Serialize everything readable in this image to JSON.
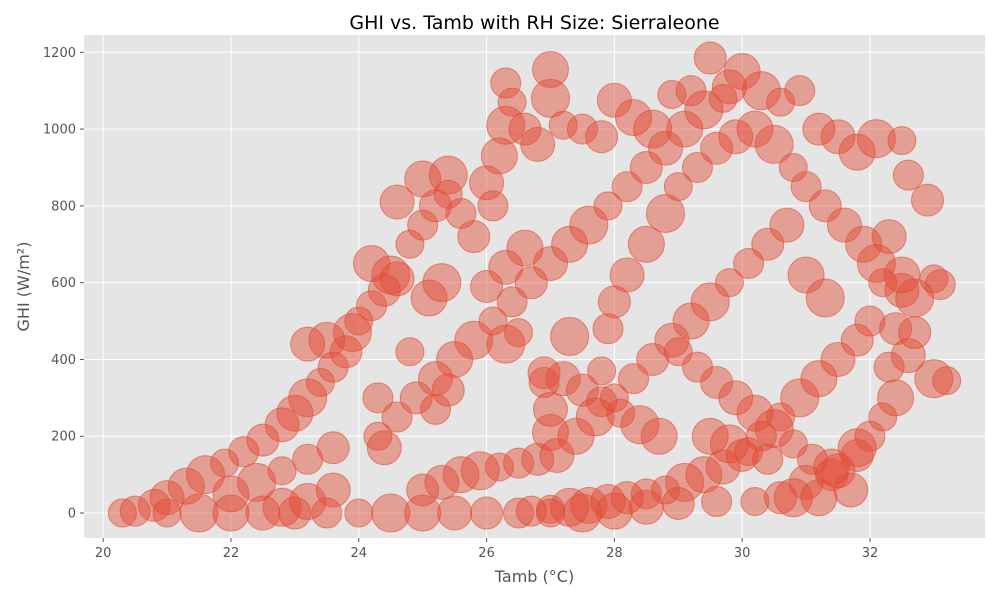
{
  "chart_data": {
    "type": "scatter",
    "title": "GHI vs. Tamb with RH Size: Sierraleone",
    "xlabel": "Tamb (°C)",
    "ylabel": "GHI (W/m²)",
    "xlim": [
      19.7,
      33.8
    ],
    "ylim": [
      -65,
      1245
    ],
    "xticks": [
      20,
      22,
      24,
      26,
      28,
      30,
      32
    ],
    "yticks": [
      0,
      200,
      400,
      600,
      800,
      1000,
      1200
    ],
    "grid": true,
    "legend": "none",
    "marker_color": "#E24A33",
    "marker_alpha": 0.45,
    "size_encoding": "RH",
    "series": [
      {
        "points": [
          [
            20.3,
            0
          ],
          [
            20.5,
            5
          ],
          [
            20.8,
            20
          ],
          [
            21.0,
            40
          ],
          [
            21.3,
            70
          ],
          [
            21.6,
            100
          ],
          [
            21.9,
            130
          ],
          [
            22.2,
            160
          ],
          [
            22.5,
            190
          ],
          [
            22.8,
            230
          ],
          [
            23.0,
            260
          ],
          [
            23.2,
            300
          ],
          [
            23.4,
            340
          ],
          [
            23.6,
            380
          ],
          [
            23.8,
            420
          ],
          [
            23.2,
            440
          ],
          [
            23.5,
            450
          ],
          [
            23.9,
            470
          ],
          [
            24.0,
            500
          ],
          [
            24.2,
            540
          ],
          [
            24.4,
            580
          ],
          [
            24.6,
            610
          ],
          [
            24.2,
            650
          ],
          [
            24.5,
            620
          ],
          [
            24.8,
            700
          ],
          [
            25.0,
            750
          ],
          [
            25.2,
            800
          ],
          [
            24.6,
            810
          ],
          [
            25.0,
            870
          ],
          [
            25.4,
            880
          ],
          [
            25.4,
            830
          ],
          [
            25.6,
            780
          ],
          [
            25.8,
            720
          ],
          [
            26.0,
            860
          ],
          [
            26.2,
            930
          ],
          [
            26.3,
            1010
          ],
          [
            26.4,
            1070
          ],
          [
            26.3,
            1120
          ],
          [
            26.6,
            1000
          ],
          [
            26.8,
            960
          ],
          [
            27.0,
            1155
          ],
          [
            27.0,
            1080
          ],
          [
            27.2,
            1010
          ],
          [
            27.5,
            1000
          ],
          [
            27.8,
            980
          ],
          [
            28.0,
            1075
          ],
          [
            28.3,
            1030
          ],
          [
            28.6,
            1000
          ],
          [
            28.9,
            1090
          ],
          [
            29.2,
            1100
          ],
          [
            29.5,
            1185
          ],
          [
            29.8,
            1110
          ],
          [
            30.0,
            1150
          ],
          [
            30.3,
            1100
          ],
          [
            30.6,
            1070
          ],
          [
            30.9,
            1100
          ],
          [
            31.2,
            1000
          ],
          [
            31.5,
            980
          ],
          [
            31.8,
            940
          ],
          [
            32.1,
            975
          ],
          [
            32.5,
            970
          ],
          [
            32.6,
            880
          ],
          [
            32.9,
            815
          ],
          [
            32.3,
            720
          ],
          [
            32.5,
            620
          ],
          [
            32.7,
            560
          ],
          [
            33.0,
            610
          ],
          [
            33.1,
            595
          ],
          [
            32.7,
            470
          ],
          [
            32.6,
            410
          ],
          [
            32.4,
            300
          ],
          [
            33.0,
            350
          ],
          [
            33.2,
            345
          ],
          [
            32.0,
            200
          ],
          [
            31.8,
            150
          ],
          [
            31.5,
            110
          ],
          [
            31.2,
            40
          ],
          [
            30.8,
            40
          ],
          [
            30.2,
            30
          ],
          [
            29.6,
            30
          ],
          [
            29.0,
            25
          ],
          [
            28.5,
            15
          ],
          [
            28.0,
            5
          ],
          [
            27.5,
            0
          ],
          [
            27.0,
            0
          ],
          [
            26.5,
            0
          ],
          [
            26.0,
            0
          ],
          [
            25.5,
            0
          ],
          [
            25.0,
            0
          ],
          [
            24.5,
            0
          ],
          [
            24.0,
            0
          ],
          [
            23.5,
            0
          ],
          [
            23.0,
            0
          ],
          [
            22.5,
            0
          ],
          [
            22.0,
            0
          ],
          [
            21.5,
            0
          ],
          [
            21.0,
            0
          ],
          [
            26.9,
            340
          ],
          [
            26.9,
            365
          ],
          [
            27.0,
            270
          ],
          [
            27.0,
            210
          ],
          [
            27.3,
            460
          ],
          [
            27.8,
            370
          ],
          [
            27.9,
            480
          ],
          [
            28.0,
            550
          ],
          [
            28.2,
            620
          ],
          [
            28.5,
            700
          ],
          [
            28.8,
            780
          ],
          [
            29.0,
            850
          ],
          [
            29.3,
            900
          ],
          [
            29.6,
            950
          ],
          [
            29.9,
            980
          ],
          [
            30.2,
            1000
          ],
          [
            30.5,
            960
          ],
          [
            30.8,
            900
          ],
          [
            31.0,
            850
          ],
          [
            31.3,
            800
          ],
          [
            31.6,
            750
          ],
          [
            31.9,
            700
          ],
          [
            32.1,
            650
          ],
          [
            32.2,
            600
          ],
          [
            32.0,
            500
          ],
          [
            31.8,
            450
          ],
          [
            31.5,
            400
          ],
          [
            31.2,
            350
          ],
          [
            30.9,
            300
          ],
          [
            30.6,
            250
          ],
          [
            30.3,
            200
          ],
          [
            30.0,
            150
          ],
          [
            29.7,
            120
          ],
          [
            29.4,
            100
          ],
          [
            29.1,
            80
          ],
          [
            28.8,
            60
          ],
          [
            28.5,
            50
          ],
          [
            28.2,
            40
          ],
          [
            27.9,
            30
          ],
          [
            27.6,
            20
          ],
          [
            27.3,
            15
          ],
          [
            27.0,
            10
          ],
          [
            26.7,
            5
          ],
          [
            25.0,
            60
          ],
          [
            25.3,
            80
          ],
          [
            25.6,
            100
          ],
          [
            25.9,
            110
          ],
          [
            26.2,
            120
          ],
          [
            26.5,
            130
          ],
          [
            26.8,
            140
          ],
          [
            27.1,
            150
          ],
          [
            27.4,
            200
          ],
          [
            27.7,
            250
          ],
          [
            28.0,
            300
          ],
          [
            28.3,
            350
          ],
          [
            28.6,
            400
          ],
          [
            28.9,
            450
          ],
          [
            29.2,
            500
          ],
          [
            29.5,
            550
          ],
          [
            29.8,
            600
          ],
          [
            30.1,
            650
          ],
          [
            30.4,
            700
          ],
          [
            30.7,
            750
          ],
          [
            22.0,
            50
          ],
          [
            22.4,
            80
          ],
          [
            22.8,
            110
          ],
          [
            23.2,
            140
          ],
          [
            23.6,
            170
          ],
          [
            23.6,
            60
          ],
          [
            23.2,
            30
          ],
          [
            22.8,
            15
          ],
          [
            24.3,
            200
          ],
          [
            24.6,
            250
          ],
          [
            24.9,
            300
          ],
          [
            25.2,
            350
          ],
          [
            25.5,
            400
          ],
          [
            25.8,
            450
          ],
          [
            26.1,
            500
          ],
          [
            26.4,
            550
          ],
          [
            26.7,
            600
          ],
          [
            27.0,
            650
          ],
          [
            27.3,
            700
          ],
          [
            27.6,
            750
          ],
          [
            27.9,
            800
          ],
          [
            28.2,
            850
          ],
          [
            28.5,
            900
          ],
          [
            28.8,
            950
          ],
          [
            29.1,
            1000
          ],
          [
            29.4,
            1050
          ],
          [
            29.7,
            1080
          ],
          [
            25.2,
            270
          ],
          [
            25.4,
            320
          ],
          [
            24.4,
            170
          ],
          [
            25.1,
            560
          ],
          [
            25.3,
            600
          ],
          [
            24.8,
            420
          ],
          [
            24.3,
            300
          ],
          [
            26.0,
            590
          ],
          [
            26.3,
            640
          ],
          [
            26.6,
            690
          ],
          [
            26.3,
            440
          ],
          [
            26.5,
            470
          ],
          [
            26.1,
            800
          ],
          [
            30.6,
            40
          ],
          [
            31.0,
            80
          ],
          [
            31.4,
            120
          ],
          [
            31.8,
            170
          ],
          [
            32.2,
            250
          ],
          [
            32.3,
            380
          ],
          [
            32.4,
            480
          ],
          [
            32.5,
            580
          ],
          [
            31.0,
            620
          ],
          [
            31.3,
            560
          ],
          [
            29.0,
            420
          ],
          [
            29.3,
            380
          ],
          [
            29.6,
            340
          ],
          [
            29.9,
            300
          ],
          [
            30.2,
            260
          ],
          [
            30.5,
            220
          ],
          [
            30.8,
            180
          ],
          [
            31.1,
            140
          ],
          [
            31.4,
            100
          ],
          [
            31.7,
            60
          ],
          [
            28.7,
            200
          ],
          [
            28.4,
            230
          ],
          [
            28.1,
            260
          ],
          [
            27.8,
            290
          ],
          [
            27.5,
            320
          ],
          [
            27.2,
            350
          ],
          [
            29.5,
            200
          ],
          [
            29.8,
            180
          ],
          [
            30.1,
            160
          ],
          [
            30.4,
            140
          ]
        ]
      }
    ]
  }
}
